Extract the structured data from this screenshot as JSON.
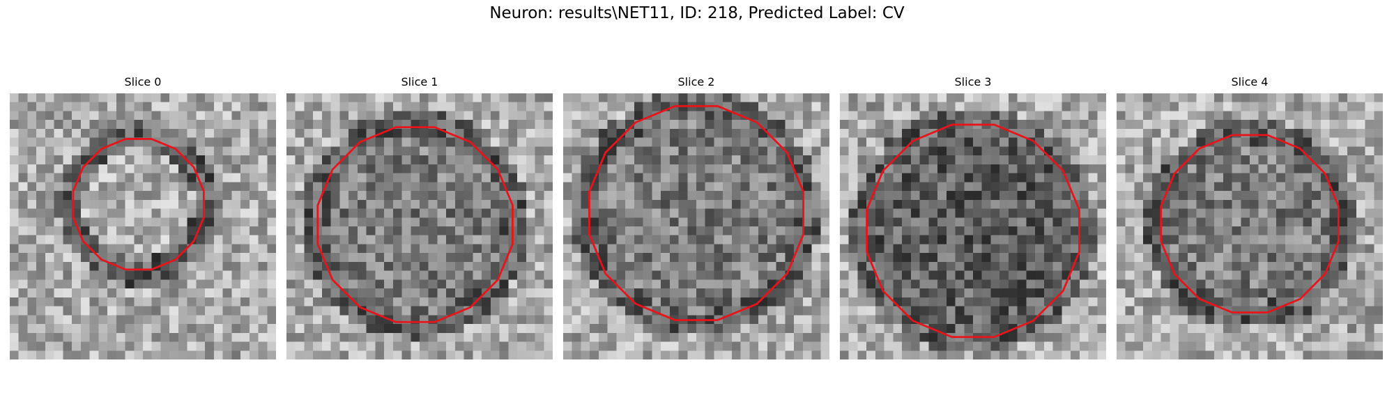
{
  "figure": {
    "title": "Neuron: results\\NET11, ID: 218, Predicted Label: CV"
  },
  "colors": {
    "contour": "#e8141a",
    "background": "#ffffff"
  },
  "image_grid": {
    "rows": 30,
    "cols": 30,
    "colormap": "grayscale"
  },
  "panels": [
    {
      "title": "Slice 0",
      "contour_center": [
        14.5,
        12.5
      ],
      "contour_radius": 7.5,
      "interior": "light"
    },
    {
      "title": "Slice 1",
      "contour_center": [
        14.5,
        14.8
      ],
      "contour_radius": 11.2,
      "interior": "medium"
    },
    {
      "title": "Slice 2",
      "contour_center": [
        15,
        13.5
      ],
      "contour_radius": 12.3,
      "interior": "medium"
    },
    {
      "title": "Slice 3",
      "contour_center": [
        15,
        15.5
      ],
      "contour_radius": 12.2,
      "interior": "dark"
    },
    {
      "title": "Slice 4",
      "contour_center": [
        15,
        14.7
      ],
      "contour_radius": 10.2,
      "interior": "medium"
    }
  ]
}
